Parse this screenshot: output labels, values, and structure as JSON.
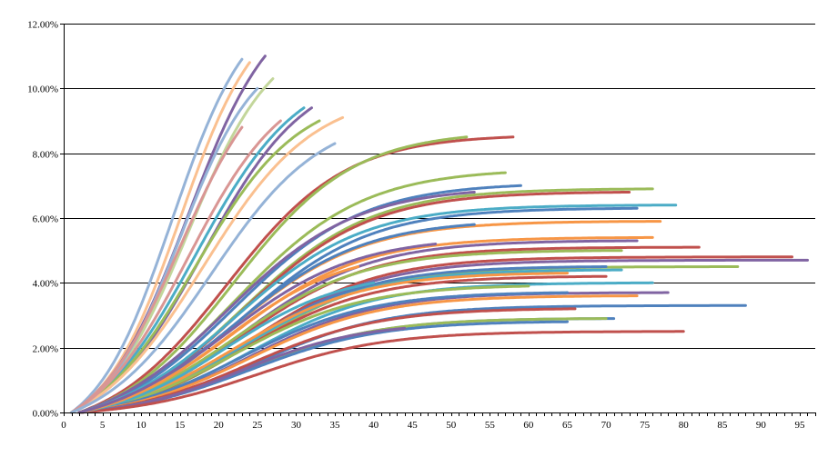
{
  "chart_data": {
    "type": "line",
    "title": "",
    "xlabel": "",
    "ylabel": "",
    "xlim": [
      0,
      97
    ],
    "ylim": [
      0,
      0.12
    ],
    "x_ticks": [
      0,
      5,
      10,
      15,
      20,
      25,
      30,
      35,
      40,
      45,
      50,
      55,
      60,
      65,
      70,
      75,
      80,
      85,
      90,
      95
    ],
    "x_tick_labels": [
      "0",
      "5",
      "10",
      "15",
      "20",
      "25",
      "30",
      "35",
      "40",
      "45",
      "50",
      "55",
      "60",
      "65",
      "70",
      "75",
      "80",
      "85",
      "90",
      "95"
    ],
    "y_ticks": [
      0,
      0.02,
      0.04,
      0.06,
      0.08,
      0.1,
      0.12
    ],
    "y_tick_labels": [
      "0.00%",
      "2.00%",
      "4.00%",
      "6.00%",
      "8.00%",
      "10.00%",
      "12.00%"
    ],
    "grid": "horizontal",
    "legend": "none",
    "palette": [
      "#4F81BD",
      "#C0504D",
      "#9BBB59",
      "#8064A2",
      "#4BACC6",
      "#F79646",
      "#95B3D7",
      "#D99694",
      "#C3D69B",
      "#FAC090"
    ],
    "series": [
      {
        "color": "#95B3D7",
        "start": 1,
        "end": 23,
        "max": 0.109,
        "mid": 14,
        "k": 0.2
      },
      {
        "color": "#FAC090",
        "start": 1,
        "end": 24,
        "max": 0.108,
        "mid": 15,
        "k": 0.2
      },
      {
        "color": "#8064A2",
        "start": 1,
        "end": 26,
        "max": 0.11,
        "mid": 16,
        "k": 0.18
      },
      {
        "color": "#C3D69B",
        "start": 1,
        "end": 27,
        "max": 0.103,
        "mid": 16,
        "k": 0.18
      },
      {
        "color": "#95B3D7",
        "start": 1,
        "end": 25,
        "max": 0.1,
        "mid": 15,
        "k": 0.2
      },
      {
        "color": "#D99694",
        "start": 1,
        "end": 23,
        "max": 0.088,
        "mid": 15,
        "k": 0.18
      },
      {
        "color": "#4BACC6",
        "start": 1,
        "end": 31,
        "max": 0.094,
        "mid": 17,
        "k": 0.15
      },
      {
        "color": "#8064A2",
        "start": 1,
        "end": 32,
        "max": 0.094,
        "mid": 18,
        "k": 0.15
      },
      {
        "color": "#9BBB59",
        "start": 1,
        "end": 33,
        "max": 0.09,
        "mid": 17,
        "k": 0.15
      },
      {
        "color": "#FAC090",
        "start": 1,
        "end": 36,
        "max": 0.091,
        "mid": 18,
        "k": 0.14
      },
      {
        "color": "#D99694",
        "start": 1,
        "end": 28,
        "max": 0.09,
        "mid": 16,
        "k": 0.16
      },
      {
        "color": "#95B3D7",
        "start": 1,
        "end": 35,
        "max": 0.083,
        "mid": 19,
        "k": 0.14
      },
      {
        "color": "#C0504D",
        "start": 2,
        "end": 58,
        "max": 0.085,
        "mid": 21,
        "k": 0.13
      },
      {
        "color": "#9BBB59",
        "start": 2,
        "end": 52,
        "max": 0.085,
        "mid": 22,
        "k": 0.13
      },
      {
        "color": "#9BBB59",
        "start": 2,
        "end": 57,
        "max": 0.074,
        "mid": 22,
        "k": 0.12
      },
      {
        "color": "#4F81BD",
        "start": 2,
        "end": 59,
        "max": 0.07,
        "mid": 22,
        "k": 0.12
      },
      {
        "color": "#8064A2",
        "start": 2,
        "end": 53,
        "max": 0.068,
        "mid": 21,
        "k": 0.12
      },
      {
        "color": "#9BBB59",
        "start": 2,
        "end": 76,
        "max": 0.069,
        "mid": 23,
        "k": 0.12
      },
      {
        "color": "#C0504D",
        "start": 2,
        "end": 73,
        "max": 0.068,
        "mid": 23,
        "k": 0.12
      },
      {
        "color": "#4BACC6",
        "start": 2,
        "end": 79,
        "max": 0.064,
        "mid": 22,
        "k": 0.12
      },
      {
        "color": "#4F81BD",
        "start": 2,
        "end": 74,
        "max": 0.063,
        "mid": 23,
        "k": 0.12
      },
      {
        "color": "#F79646",
        "start": 2,
        "end": 77,
        "max": 0.059,
        "mid": 22,
        "k": 0.12
      },
      {
        "color": "#4F81BD",
        "start": 2,
        "end": 53,
        "max": 0.058,
        "mid": 22,
        "k": 0.12
      },
      {
        "color": "#F79646",
        "start": 2,
        "end": 76,
        "max": 0.054,
        "mid": 22,
        "k": 0.12
      },
      {
        "color": "#8064A2",
        "start": 2,
        "end": 74,
        "max": 0.053,
        "mid": 23,
        "k": 0.12
      },
      {
        "color": "#C0504D",
        "start": 2,
        "end": 82,
        "max": 0.051,
        "mid": 23,
        "k": 0.12
      },
      {
        "color": "#9BBB59",
        "start": 2,
        "end": 72,
        "max": 0.05,
        "mid": 22,
        "k": 0.12
      },
      {
        "color": "#C0504D",
        "start": 2,
        "end": 94,
        "max": 0.048,
        "mid": 24,
        "k": 0.12
      },
      {
        "color": "#8064A2",
        "start": 2,
        "end": 96,
        "max": 0.047,
        "mid": 24,
        "k": 0.12
      },
      {
        "color": "#9BBB59",
        "start": 2,
        "end": 87,
        "max": 0.045,
        "mid": 24,
        "k": 0.12
      },
      {
        "color": "#4F81BD",
        "start": 2,
        "end": 70,
        "max": 0.045,
        "mid": 23,
        "k": 0.12
      },
      {
        "color": "#4BACC6",
        "start": 2,
        "end": 72,
        "max": 0.044,
        "mid": 23,
        "k": 0.12
      },
      {
        "color": "#C0504D",
        "start": 2,
        "end": 70,
        "max": 0.042,
        "mid": 23,
        "k": 0.12
      },
      {
        "color": "#4BACC6",
        "start": 2,
        "end": 76,
        "max": 0.04,
        "mid": 24,
        "k": 0.12
      },
      {
        "color": "#F79646",
        "start": 2,
        "end": 65,
        "max": 0.043,
        "mid": 22,
        "k": 0.12
      },
      {
        "color": "#9BBB59",
        "start": 2,
        "end": 60,
        "max": 0.039,
        "mid": 22,
        "k": 0.12
      },
      {
        "color": "#8064A2",
        "start": 2,
        "end": 78,
        "max": 0.037,
        "mid": 24,
        "k": 0.12
      },
      {
        "color": "#4F81BD",
        "start": 2,
        "end": 65,
        "max": 0.037,
        "mid": 23,
        "k": 0.12
      },
      {
        "color": "#F79646",
        "start": 2,
        "end": 74,
        "max": 0.036,
        "mid": 24,
        "k": 0.12
      },
      {
        "color": "#4F81BD",
        "start": 2,
        "end": 88,
        "max": 0.033,
        "mid": 25,
        "k": 0.12
      },
      {
        "color": "#C0504D",
        "start": 2,
        "end": 66,
        "max": 0.032,
        "mid": 24,
        "k": 0.12
      },
      {
        "color": "#4F81BD",
        "start": 2,
        "end": 71,
        "max": 0.029,
        "mid": 24,
        "k": 0.12
      },
      {
        "color": "#9BBB59",
        "start": 2,
        "end": 70,
        "max": 0.029,
        "mid": 24,
        "k": 0.12
      },
      {
        "color": "#4F81BD",
        "start": 2,
        "end": 65,
        "max": 0.028,
        "mid": 24,
        "k": 0.12
      },
      {
        "color": "#8064A2",
        "start": 2,
        "end": 44,
        "max": 0.026,
        "mid": 23,
        "k": 0.13
      },
      {
        "color": "#C0504D",
        "start": 2,
        "end": 80,
        "max": 0.025,
        "mid": 25,
        "k": 0.12
      },
      {
        "color": "#4BACC6",
        "start": 2,
        "end": 40,
        "max": 0.04,
        "mid": 21,
        "k": 0.13
      },
      {
        "color": "#F79646",
        "start": 2,
        "end": 38,
        "max": 0.045,
        "mid": 21,
        "k": 0.13
      },
      {
        "color": "#8064A2",
        "start": 2,
        "end": 48,
        "max": 0.052,
        "mid": 21,
        "k": 0.12
      }
    ]
  }
}
